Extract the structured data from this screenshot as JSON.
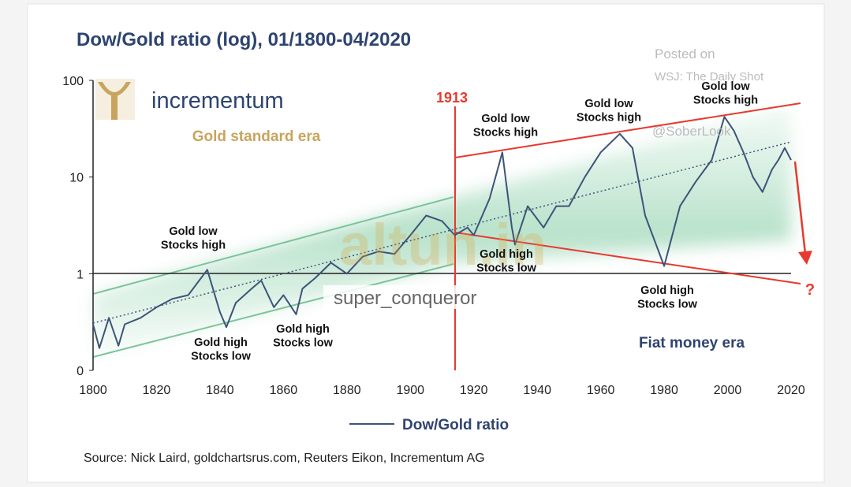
{
  "chart_data": {
    "type": "line",
    "title": "Dow/Gold ratio (log), 01/1800-04/2020",
    "x": [
      1800,
      1802,
      1805,
      1808,
      1810,
      1815,
      1820,
      1825,
      1830,
      1836,
      1840,
      1842,
      1845,
      1850,
      1853,
      1857,
      1860,
      1864,
      1866,
      1870,
      1875,
      1880,
      1885,
      1890,
      1895,
      1900,
      1905,
      1910,
      1914,
      1918,
      1920,
      1925,
      1929,
      1932,
      1933,
      1937,
      1942,
      1946,
      1950,
      1955,
      1960,
      1966,
      1970,
      1974,
      1980,
      1985,
      1990,
      1995,
      1999,
      2002,
      2005,
      2008,
      2011,
      2014,
      2016,
      2018,
      2020
    ],
    "series": [
      {
        "name": "Dow/Gold ratio",
        "color": "#3d5478",
        "values": [
          0.3,
          0.17,
          0.35,
          0.18,
          0.3,
          0.35,
          0.45,
          0.55,
          0.6,
          1.1,
          0.4,
          0.28,
          0.5,
          0.7,
          0.85,
          0.45,
          0.6,
          0.38,
          0.7,
          0.9,
          1.3,
          1.0,
          1.5,
          1.7,
          1.6,
          2.5,
          4,
          3.5,
          2.5,
          3,
          2.5,
          6,
          18,
          3,
          2,
          5,
          3,
          5,
          5,
          10,
          18,
          28,
          20,
          4,
          1.2,
          5,
          9,
          15,
          42,
          30,
          18,
          10,
          7,
          12,
          15,
          20,
          15
        ]
      }
    ],
    "xlim": [
      1800,
      2020
    ],
    "xticks": [
      1800,
      1820,
      1840,
      1860,
      1880,
      1900,
      1920,
      1940,
      1960,
      1980,
      2000,
      2020
    ],
    "ylim": [
      0.1,
      100
    ],
    "yticks": [
      {
        "value": 0.1,
        "label": "0"
      },
      1,
      10,
      100
    ],
    "log_scale": true,
    "legend": "bottom",
    "annotations": [
      [
        "Gold standard era"
      ],
      [
        "Fiat money era"
      ],
      [
        "1913"
      ],
      [
        "?"
      ],
      [
        "Gold low",
        "Stocks high"
      ],
      [
        "Gold high",
        "Stocks low"
      ],
      [
        "Gold high",
        "Stocks low"
      ],
      [
        "Gold low",
        "Stocks high"
      ],
      [
        "Gold high",
        "Stocks low"
      ],
      [
        "Gold low",
        "Stocks high"
      ],
      [
        "Gold high",
        "Stocks low"
      ],
      [
        "Gold low",
        "Stocks high"
      ]
    ],
    "source": "Source: Nick Laird, goldchartsrus.com, Reuters Eikon, Incrementum AG"
  },
  "branding": {
    "logo": "incrementum",
    "watermark": "altun.in",
    "user": "super_conqueror",
    "posted": [
      "Posted on",
      "WSJ: The Daily Shot",
      "@SoberLook"
    ]
  }
}
